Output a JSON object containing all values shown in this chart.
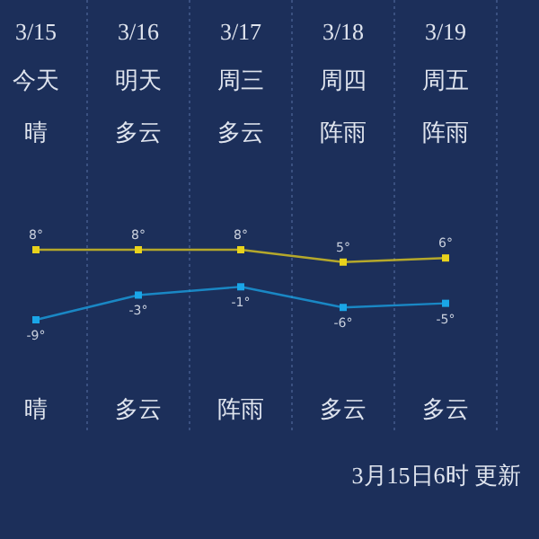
{
  "chart_data": {
    "type": "line",
    "categories": [
      "3/15",
      "3/16",
      "3/17",
      "3/18",
      "3/19"
    ],
    "series": [
      {
        "color": "#e8d21c",
        "values": [
          8,
          8,
          8,
          5,
          6
        ],
        "value_labels": [
          "8°",
          "8°",
          "8°",
          "5°",
          "6°"
        ]
      },
      {
        "color": "#1aa6e8",
        "values": [
          -9,
          -3,
          -1,
          -6,
          -5
        ],
        "value_labels": [
          "-9°",
          "-3°",
          "-1°",
          "-6°",
          "-5°"
        ]
      }
    ],
    "marker": "square",
    "grid": "x",
    "annotations": [
      "今天",
      "明天",
      "周三",
      "周四",
      "周五",
      "晴",
      "多云",
      "多云",
      "阵雨",
      "阵雨",
      "晴",
      "多云",
      "阵雨",
      "多云",
      "多云",
      "3月15日6时 更新"
    ]
  }
}
